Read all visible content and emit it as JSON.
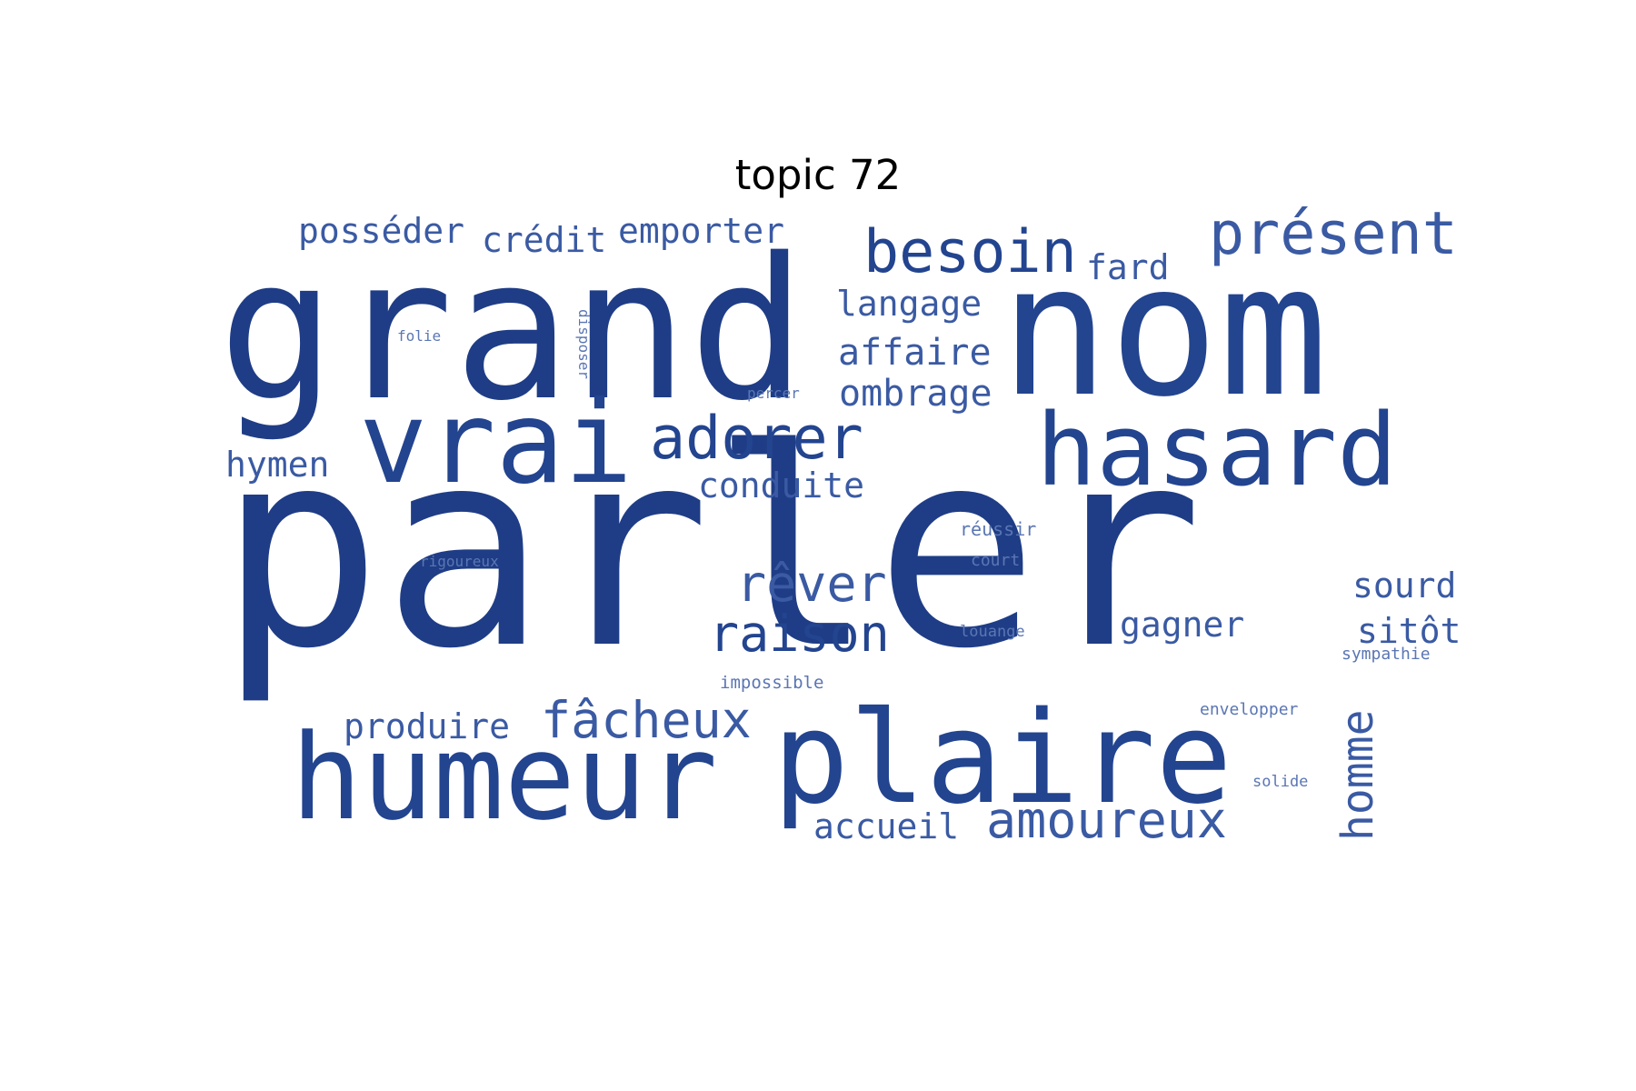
{
  "title": "topic 72",
  "colors": {
    "dark": "#1f3d86",
    "mid": "#23448f",
    "light": "#3a5aa3",
    "faint": "#5a76b4"
  },
  "words": {
    "parler": "parler",
    "grand": "grand",
    "nom": "nom",
    "humeur": "humeur",
    "plaire": "plaire",
    "vrai": "vrai",
    "hasard": "hasard",
    "besoin": "besoin",
    "present": "présent",
    "adorer": "adorer",
    "raison": "raison",
    "rever": "rêver",
    "facheux": "fâcheux",
    "amoureux": "amoureux",
    "homme": "homme",
    "posseder": "posséder",
    "credit": "crédit",
    "emporter": "emporter",
    "fard": "fard",
    "langage": "langage",
    "affaire": "affaire",
    "ombrage": "ombrage",
    "conduite": "conduite",
    "hymen": "hymen",
    "produire": "produire",
    "accueil": "accueil",
    "gagner": "gagner",
    "sourd": "sourd",
    "sitot": "sitôt",
    "folie": "folie",
    "disposer": "disposer",
    "percer": "percer",
    "reussir": "réussir",
    "rigoureux": "rigoureux",
    "court": "court",
    "louange": "louange",
    "sympathie": "sympathie",
    "impossible": "impossible",
    "envelopper": "envelopper",
    "solide": "solide"
  }
}
